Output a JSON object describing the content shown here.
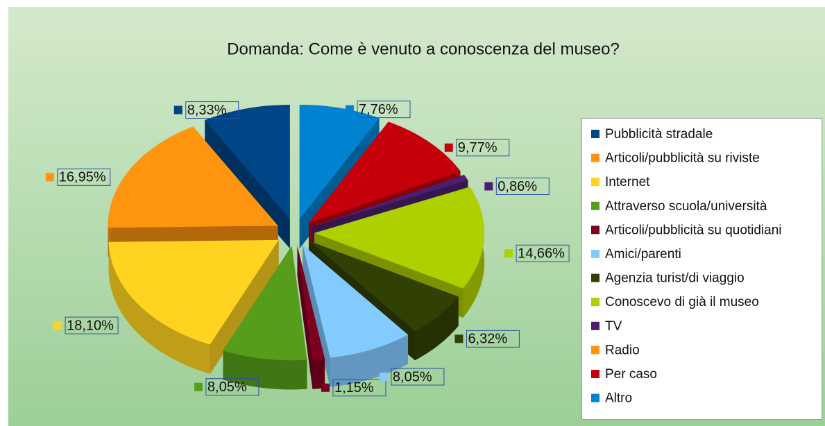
{
  "chart_data": {
    "type": "pie",
    "title": "Domanda: Come è venuto a conoscenza del museo?",
    "categories": [
      "Pubblicità stradale",
      "Articoli/pubblicità su riviste",
      "Internet",
      "Attraverso scuola/università",
      "Articoli/pubblicità su quotidiani",
      "Amici/parenti",
      "Agenzia turist/di viaggio",
      "Conoscevo di già il museo",
      "TV",
      "Radio",
      "Per caso",
      "Altro"
    ],
    "values": [
      8.33,
      16.95,
      18.1,
      8.05,
      1.15,
      8.05,
      6.32,
      14.66,
      0.86,
      0,
      9.77,
      7.76
    ],
    "value_labels": [
      "8,33%",
      "16,95%",
      "18,10%",
      "8,05%",
      "1,15%",
      "8,05%",
      "6,32%",
      "14,66%",
      "0,86%",
      null,
      "9,77%",
      "7,76%"
    ],
    "colors": [
      "#004586",
      "#ff950e",
      "#ffd320",
      "#579d1c",
      "#7e0021",
      "#83caff",
      "#314004",
      "#aecf00",
      "#4b1f6f",
      "#ff950e",
      "#c5000b",
      "#0084d1"
    ],
    "legend": "right"
  }
}
